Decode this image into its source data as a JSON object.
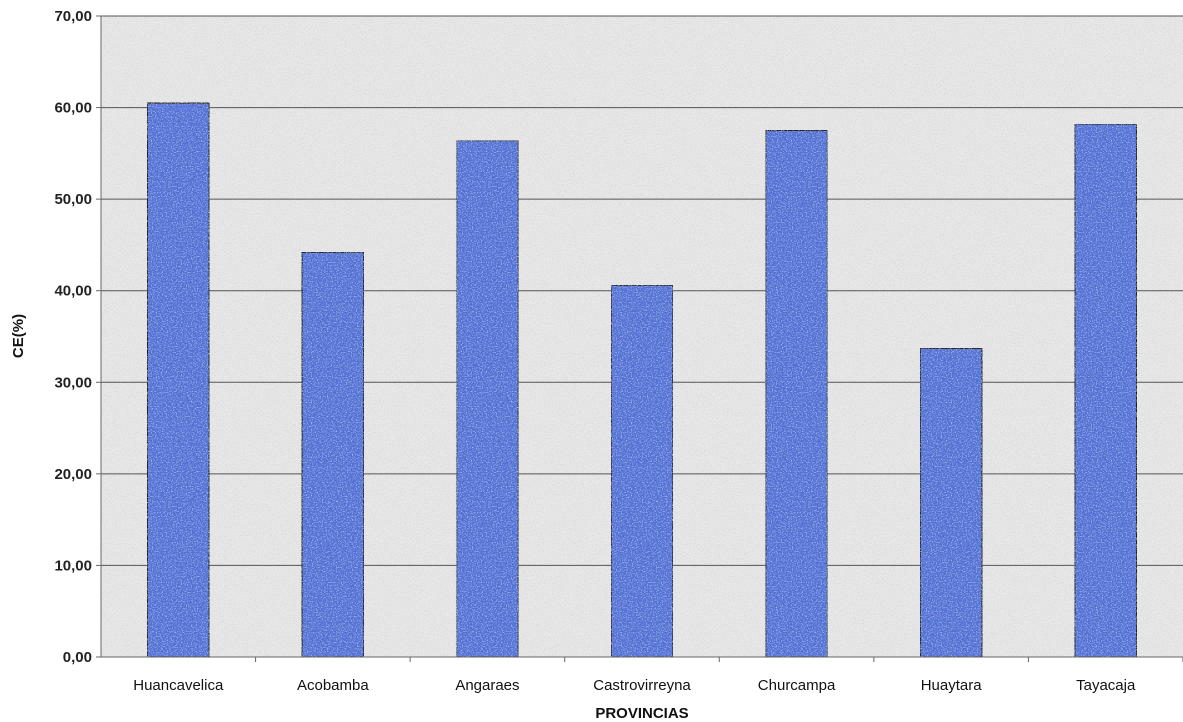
{
  "chart_data": {
    "type": "bar",
    "title": "",
    "xlabel": "PROVINCIAS",
    "ylabel": "CE(%)",
    "ylim": [
      0,
      70
    ],
    "ytick_step": 10,
    "ytick_labels": [
      "0,00",
      "10,00",
      "20,00",
      "30,00",
      "40,00",
      "50,00",
      "60,00",
      "70,00"
    ],
    "grid": true,
    "legend": "none",
    "categories": [
      "Huancavelica",
      "Acobamba",
      "Angaraes",
      "Castrovirreyna",
      "Churcampa",
      "Huaytara",
      "Tayacaja"
    ],
    "values": [
      60.5,
      44.2,
      56.4,
      40.6,
      57.5,
      33.7,
      58.2
    ],
    "colors": {
      "bar": "#4f6fd4",
      "bar_edge": "#1a1a1a",
      "plot_bg": "#e8e8e8",
      "grid": "#555555"
    }
  }
}
